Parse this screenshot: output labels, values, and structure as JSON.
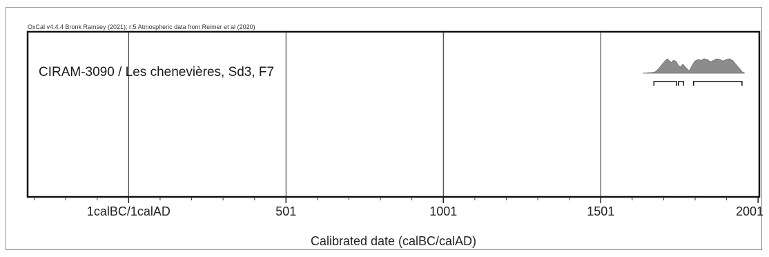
{
  "chart_data": {
    "type": "area",
    "credit": "OxCal v4.4.4 Bronk Ramsey (2021); r:5 Atmospheric data from Reimer et al (2020)",
    "sample_label": "CIRAM-3090 / Les chenevières, Sd3, F7",
    "xlabel": "Calibrated date (calBC/calAD)",
    "xlim": [
      -320,
      2005
    ],
    "ticks": [
      {
        "value": 1,
        "label": "1calBC/1calAD"
      },
      {
        "value": 501,
        "label": "501"
      },
      {
        "value": 1001,
        "label": "1001"
      },
      {
        "value": 1501,
        "label": "1501"
      },
      {
        "value": 2001,
        "label": "2001"
      }
    ],
    "minor_tick_step": 100,
    "grid": true,
    "density": {
      "x": [
        1665,
        1675,
        1685,
        1695,
        1705,
        1712,
        1718,
        1725,
        1732,
        1740,
        1748,
        1755,
        1762,
        1768,
        1775,
        1782,
        1790,
        1800,
        1810,
        1820,
        1830,
        1840,
        1850,
        1860,
        1870,
        1880,
        1890,
        1900,
        1910,
        1920,
        1930,
        1940,
        1950
      ],
      "y": [
        0.05,
        0.1,
        0.3,
        0.55,
        0.8,
        0.95,
        0.85,
        0.7,
        0.85,
        0.8,
        0.5,
        0.4,
        0.6,
        0.45,
        0.3,
        0.15,
        0.45,
        0.8,
        0.9,
        0.85,
        0.95,
        0.9,
        0.75,
        0.85,
        0.95,
        0.9,
        0.8,
        0.9,
        0.95,
        0.85,
        0.6,
        0.35,
        0.1
      ]
    },
    "hpd_ranges": [
      [
        1670,
        1742
      ],
      [
        1748,
        1764
      ],
      [
        1796,
        1950
      ]
    ]
  }
}
